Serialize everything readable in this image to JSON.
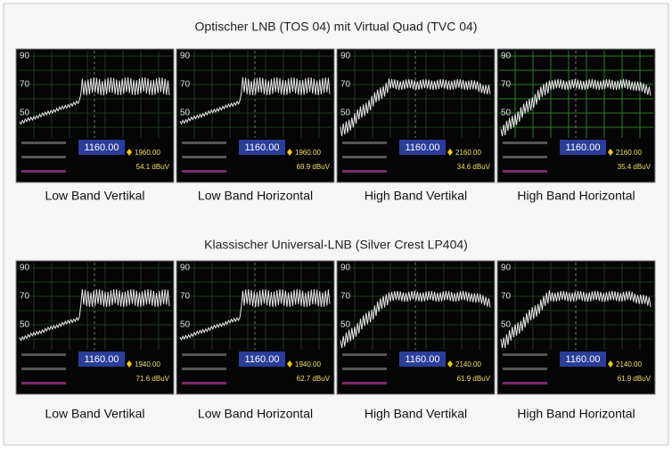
{
  "sections": [
    {
      "title": "Optischer LNB (TOS 04) mit Virtual Quad (TVC 04)",
      "panels": [
        {
          "caption": "Low Band Vertikal",
          "scale": [
            "90",
            "70",
            "50"
          ],
          "center": "1160.00",
          "marker": "1960.00",
          "level": "54.1 dBuV"
        },
        {
          "caption": "Low Band Horizontal",
          "scale": [
            "90",
            "70",
            "50"
          ],
          "center": "1160.00",
          "marker": "1960.00",
          "level": "69.9 dBuV"
        },
        {
          "caption": "High Band Vertikal",
          "scale": [
            "90",
            "70",
            "50"
          ],
          "center": "1160.00",
          "marker": "2160.00",
          "level": "34.6 dBuV"
        },
        {
          "caption": "High Band Horizontal",
          "scale": [
            "90",
            "70",
            "50"
          ],
          "center": "1160.00",
          "marker": "2160.00",
          "level": "35.4 dBuV"
        }
      ]
    },
    {
      "title": "Klassischer Universal-LNB (Silver Crest LP404)",
      "panels": [
        {
          "caption": "Low Band Vertikal",
          "scale": [
            "90",
            "70",
            "50"
          ],
          "center": "1160.00",
          "marker": "1940.00",
          "level": "71.6 dBuV"
        },
        {
          "caption": "Low Band Horizontal",
          "scale": [
            "90",
            "70",
            "50"
          ],
          "center": "1160.00",
          "marker": "1940.00",
          "level": "62.7 dBuV"
        },
        {
          "caption": "High Band Vertikal",
          "scale": [
            "90",
            "70",
            "50"
          ],
          "center": "1160.00",
          "marker": "2140.00",
          "level": "61.9 dBuV"
        },
        {
          "caption": "High Band Horizontal",
          "scale": [
            "90",
            "70",
            "50"
          ],
          "center": "1160.00",
          "marker": "2140.00",
          "level": "61.9 dBuV"
        }
      ]
    }
  ]
}
